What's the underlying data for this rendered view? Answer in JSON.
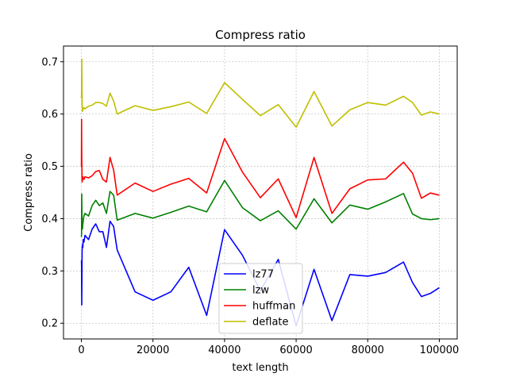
{
  "chart_data": {
    "type": "line",
    "title": "Compress ratio",
    "xlabel": "text length",
    "ylabel": "Compress ratio",
    "xlim": [
      -5000,
      105000
    ],
    "ylim": [
      0.17,
      0.73
    ],
    "xticks": [
      0,
      20000,
      40000,
      60000,
      80000,
      100000
    ],
    "xtick_labels": [
      "0",
      "20000",
      "40000",
      "60000",
      "80000",
      "100000"
    ],
    "yticks": [
      0.2,
      0.3,
      0.4,
      0.5,
      0.6,
      0.7
    ],
    "ytick_labels": [
      "0.2",
      "0.3",
      "0.4",
      "0.5",
      "0.6",
      "0.7"
    ],
    "grid": true,
    "legend_position": "lower-center",
    "series": [
      {
        "name": "lz77",
        "color": "#0000ff",
        "x": [
          10,
          50,
          100,
          200,
          300,
          400,
          500,
          700,
          1000,
          2000,
          3000,
          4000,
          5000,
          6000,
          7000,
          8000,
          9000,
          10000,
          15000,
          20000,
          25000,
          30000,
          35000,
          40000,
          45000,
          50000,
          55000,
          60000,
          65000,
          70000,
          75000,
          80000,
          85000,
          90000,
          92500,
          95000,
          97500,
          100000
        ],
        "y": [
          0.32,
          0.31,
          0.235,
          0.34,
          0.35,
          0.345,
          0.36,
          0.355,
          0.368,
          0.36,
          0.38,
          0.39,
          0.375,
          0.375,
          0.345,
          0.395,
          0.385,
          0.34,
          0.26,
          0.244,
          0.26,
          0.307,
          0.215,
          0.379,
          0.33,
          0.262,
          0.322,
          0.195,
          0.303,
          0.205,
          0.293,
          0.29,
          0.297,
          0.317,
          0.278,
          0.251,
          0.257,
          0.268
        ]
      },
      {
        "name": "lzw",
        "color": "#008000",
        "x": [
          10,
          50,
          100,
          200,
          300,
          400,
          500,
          700,
          1000,
          2000,
          3000,
          4000,
          5000,
          6000,
          7000,
          8000,
          9000,
          10000,
          15000,
          20000,
          25000,
          30000,
          35000,
          40000,
          45000,
          50000,
          55000,
          60000,
          65000,
          70000,
          75000,
          80000,
          85000,
          90000,
          92500,
          95000,
          97500,
          100000
        ],
        "y": [
          0.365,
          0.372,
          0.447,
          0.38,
          0.38,
          0.39,
          0.395,
          0.405,
          0.41,
          0.405,
          0.425,
          0.435,
          0.425,
          0.43,
          0.41,
          0.452,
          0.445,
          0.397,
          0.41,
          0.401,
          0.412,
          0.424,
          0.413,
          0.473,
          0.421,
          0.396,
          0.415,
          0.38,
          0.438,
          0.392,
          0.426,
          0.418,
          0.432,
          0.448,
          0.409,
          0.4,
          0.398,
          0.4
        ]
      },
      {
        "name": "huffman",
        "color": "#ff0000",
        "x": [
          10,
          50,
          100,
          200,
          300,
          400,
          500,
          700,
          1000,
          2000,
          3000,
          4000,
          5000,
          6000,
          7000,
          8000,
          9000,
          10000,
          15000,
          20000,
          25000,
          30000,
          35000,
          40000,
          45000,
          50000,
          55000,
          60000,
          65000,
          70000,
          75000,
          80000,
          85000,
          90000,
          92500,
          95000,
          97500,
          100000
        ],
        "y": [
          0.5,
          0.59,
          0.52,
          0.47,
          0.475,
          0.48,
          0.478,
          0.475,
          0.48,
          0.478,
          0.482,
          0.49,
          0.492,
          0.475,
          0.47,
          0.517,
          0.493,
          0.445,
          0.468,
          0.452,
          0.466,
          0.477,
          0.449,
          0.553,
          0.489,
          0.44,
          0.476,
          0.402,
          0.517,
          0.41,
          0.457,
          0.474,
          0.476,
          0.508,
          0.487,
          0.439,
          0.449,
          0.445
        ]
      },
      {
        "name": "deflate",
        "color": "#bfbf00",
        "x": [
          10,
          50,
          100,
          200,
          300,
          400,
          500,
          700,
          1000,
          2000,
          3000,
          4000,
          5000,
          6000,
          7000,
          8000,
          9000,
          10000,
          15000,
          20000,
          25000,
          30000,
          35000,
          40000,
          45000,
          50000,
          55000,
          60000,
          65000,
          70000,
          75000,
          80000,
          85000,
          90000,
          92500,
          95000,
          97500,
          100000
        ],
        "y": [
          0.63,
          0.64,
          0.705,
          0.62,
          0.605,
          0.608,
          0.61,
          0.612,
          0.61,
          0.615,
          0.617,
          0.622,
          0.622,
          0.62,
          0.615,
          0.64,
          0.625,
          0.6,
          0.616,
          0.607,
          0.614,
          0.623,
          0.601,
          0.66,
          0.628,
          0.597,
          0.618,
          0.575,
          0.643,
          0.577,
          0.608,
          0.622,
          0.617,
          0.634,
          0.622,
          0.598,
          0.604,
          0.6
        ]
      }
    ]
  }
}
